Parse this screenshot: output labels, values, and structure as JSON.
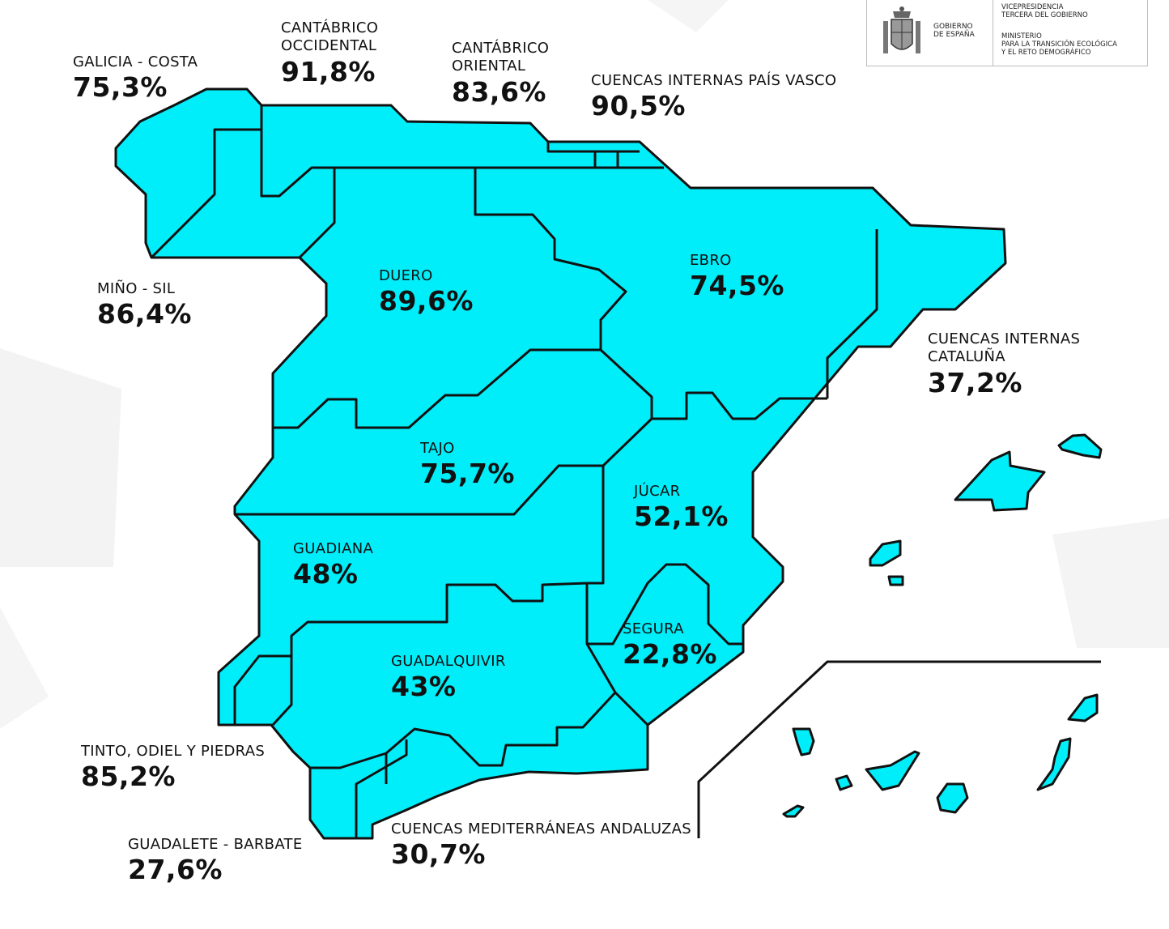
{
  "header": {
    "gobierno": "GOBIERNO\nDE ESPAÑA",
    "vicepresidencia": "VICEPRESIDENCIA\nTERCERA DEL GOBIERNO",
    "ministerio": "MINISTERIO\nPARA LA TRANSICIÓN ECOLÓGICA\nY EL RETO DEMOGRÁFICO"
  },
  "colors": {
    "basin_fill": "#00eefa",
    "border": "#111111",
    "background": "#ffffff"
  },
  "basins": {
    "galicia_costa": {
      "name": "GALICIA - COSTA",
      "pct": "75,3%"
    },
    "cantabrico_occ": {
      "name": "CANTÁBRICO\nOCCIDENTAL",
      "pct": "91,8%"
    },
    "cantabrico_or": {
      "name": "CANTÁBRICO\nORIENTAL",
      "pct": "83,6%"
    },
    "pais_vasco": {
      "name": "CUENCAS INTERNAS PAÍS VASCO",
      "pct": "90,5%"
    },
    "mino_sil": {
      "name": "MIÑO - SIL",
      "pct": "86,4%"
    },
    "duero": {
      "name": "DUERO",
      "pct": "89,6%"
    },
    "ebro": {
      "name": "EBRO",
      "pct": "74,5%"
    },
    "cataluna": {
      "name": "CUENCAS INTERNAS\nCATALUÑA",
      "pct": "37,2%"
    },
    "tajo": {
      "name": "TAJO",
      "pct": "75,7%"
    },
    "jucar": {
      "name": "JÚCAR",
      "pct": "52,1%"
    },
    "guadiana": {
      "name": "GUADIANA",
      "pct": "48%"
    },
    "segura": {
      "name": "SEGURA",
      "pct": "22,8%"
    },
    "guadalquivir": {
      "name": "GUADALQUIVIR",
      "pct": "43%"
    },
    "tinto": {
      "name": "TINTO, ODIEL Y PIEDRAS",
      "pct": "85,2%"
    },
    "guadalete": {
      "name": "GUADALETE - BARBATE",
      "pct": "27,6%"
    },
    "mediterraneas": {
      "name": "CUENCAS MEDITERRÁNEAS ANDALUZAS",
      "pct": "30,7%"
    }
  }
}
